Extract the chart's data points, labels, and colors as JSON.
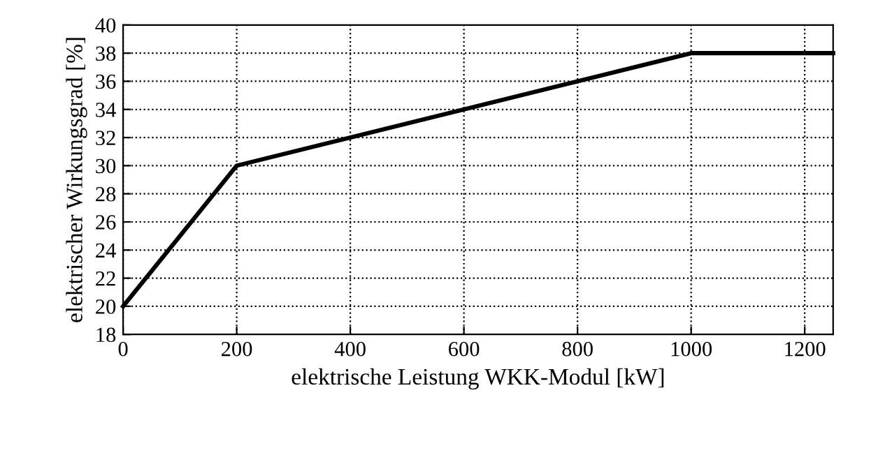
{
  "chart_data": {
    "type": "line",
    "xlabel": "elektrische Leistung WKK-Modul [kW]",
    "ylabel": "elektrischer Wirkungsgrad [%]",
    "x": [
      0,
      200,
      1000,
      1250
    ],
    "series": [
      {
        "color": "#000000",
        "values": [
          20,
          30,
          38,
          38
        ]
      }
    ],
    "xlim": [
      0,
      1250
    ],
    "xticks": [
      0,
      200,
      400,
      600,
      800,
      1000,
      1200
    ],
    "ylim": [
      18,
      40
    ],
    "yticks": [
      18,
      20,
      22,
      24,
      26,
      28,
      30,
      32,
      34,
      36,
      38,
      40
    ],
    "grid": true,
    "line_style": "solid",
    "marker": "none"
  }
}
